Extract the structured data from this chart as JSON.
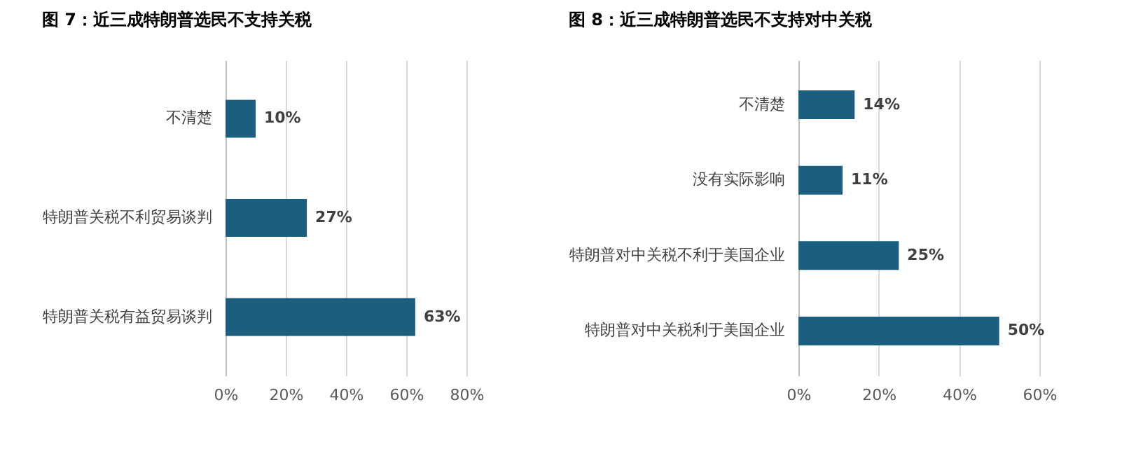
{
  "chart_data": [
    {
      "type": "bar",
      "title": "图 7：近三成特朗普选民不支持关税",
      "orientation": "horizontal",
      "categories": [
        "不清楚",
        "特朗普关税不利贸易谈判",
        "特朗普关税有益贸易谈判"
      ],
      "values": [
        10,
        27,
        63
      ],
      "value_labels": [
        "10%",
        "27%",
        "63%"
      ],
      "color": "#1b5e7e",
      "xlim": [
        0,
        80
      ],
      "xticks": [
        {
          "value": 0,
          "label": "0%"
        },
        {
          "value": 20,
          "label": "20%"
        },
        {
          "value": 40,
          "label": "40%"
        },
        {
          "value": 60,
          "label": "60%"
        },
        {
          "value": 80,
          "label": "80%"
        }
      ],
      "grid": "x"
    },
    {
      "type": "bar",
      "title": "图 8：近三成特朗普选民不支持对中关税",
      "orientation": "horizontal",
      "categories": [
        "不清楚",
        "没有实际影响",
        "特朗普对中关税不利于美国企业",
        "特朗普对中关税利于美国企业"
      ],
      "values": [
        14,
        11,
        25,
        50
      ],
      "value_labels": [
        "14%",
        "11%",
        "25%",
        "50%"
      ],
      "color": "#1b5e7e",
      "xlim": [
        0,
        60
      ],
      "xticks": [
        {
          "value": 0,
          "label": "0%"
        },
        {
          "value": 20,
          "label": "20%"
        },
        {
          "value": 40,
          "label": "40%"
        },
        {
          "value": 60,
          "label": "60%"
        }
      ],
      "grid": "x"
    }
  ]
}
